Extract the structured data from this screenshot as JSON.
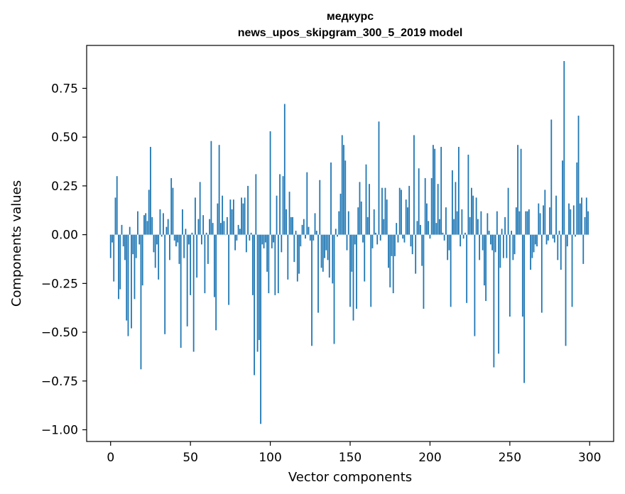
{
  "chart_data": {
    "type": "bar",
    "title": "медкурс",
    "subtitle": "news_upos_skipgram_300_5_2019 model",
    "xlabel": "Vector components",
    "ylabel": "Components values",
    "xlim": [
      -15,
      315
    ],
    "ylim": [
      -1.06,
      0.97
    ],
    "xticks": [
      0,
      50,
      100,
      150,
      200,
      250,
      300
    ],
    "xtick_labels": [
      "0",
      "50",
      "100",
      "150",
      "200",
      "250",
      "300"
    ],
    "yticks": [
      0.75,
      0.5,
      0.25,
      0.0,
      -0.25,
      -0.5,
      -0.75,
      -1.0
    ],
    "ytick_labels": [
      "0.75",
      "0.50",
      "0.25",
      "0.00",
      "−0.25",
      "−0.50",
      "−0.75",
      "−1.00"
    ],
    "bar_color": "#1f77b4",
    "grid": false,
    "x": [
      0,
      1,
      2,
      3,
      4,
      5,
      6,
      7,
      8,
      9,
      10,
      11,
      12,
      13,
      14,
      15,
      16,
      17,
      18,
      19,
      20,
      21,
      22,
      23,
      24,
      25,
      26,
      27,
      28,
      29,
      30,
      31,
      32,
      33,
      34,
      35,
      36,
      37,
      38,
      39,
      40,
      41,
      42,
      43,
      44,
      45,
      46,
      47,
      48,
      49,
      50,
      51,
      52,
      53,
      54,
      55,
      56,
      57,
      58,
      59,
      60,
      61,
      62,
      63,
      64,
      65,
      66,
      67,
      68,
      69,
      70,
      71,
      72,
      73,
      74,
      75,
      76,
      77,
      78,
      79,
      80,
      81,
      82,
      83,
      84,
      85,
      86,
      87,
      88,
      89,
      90,
      91,
      92,
      93,
      94,
      95,
      96,
      97,
      98,
      99,
      100,
      101,
      102,
      103,
      104,
      105,
      106,
      107,
      108,
      109,
      110,
      111,
      112,
      113,
      114,
      115,
      116,
      117,
      118,
      119,
      120,
      121,
      122,
      123,
      124,
      125,
      126,
      127,
      128,
      129,
      130,
      131,
      132,
      133,
      134,
      135,
      136,
      137,
      138,
      139,
      140,
      141,
      142,
      143,
      144,
      145,
      146,
      147,
      148,
      149,
      150,
      151,
      152,
      153,
      154,
      155,
      156,
      157,
      158,
      159,
      160,
      161,
      162,
      163,
      164,
      165,
      166,
      167,
      168,
      169,
      170,
      171,
      172,
      173,
      174,
      175,
      176,
      177,
      178,
      179,
      180,
      181,
      182,
      183,
      184,
      185,
      186,
      187,
      188,
      189,
      190,
      191,
      192,
      193,
      194,
      195,
      196,
      197,
      198,
      199,
      200,
      201,
      202,
      203,
      204,
      205,
      206,
      207,
      208,
      209,
      210,
      211,
      212,
      213,
      214,
      215,
      216,
      217,
      218,
      219,
      220,
      221,
      222,
      223,
      224,
      225,
      226,
      227,
      228,
      229,
      230,
      231,
      232,
      233,
      234,
      235,
      236,
      237,
      238,
      239,
      240,
      241,
      242,
      243,
      244,
      245,
      246,
      247,
      248,
      249,
      250,
      251,
      252,
      253,
      254,
      255,
      256,
      257,
      258,
      259,
      260,
      261,
      262,
      263,
      264,
      265,
      266,
      267,
      268,
      269,
      270,
      271,
      272,
      273,
      274,
      275,
      276,
      277,
      278,
      279,
      280,
      281,
      282,
      283,
      284,
      285,
      286,
      287,
      288,
      289,
      290,
      291,
      292,
      293,
      294,
      295,
      296,
      297,
      298,
      299
    ],
    "values": [
      -0.12,
      -0.04,
      -0.24,
      0.19,
      0.3,
      -0.33,
      -0.28,
      0.05,
      -0.06,
      -0.13,
      -0.44,
      -0.52,
      0.04,
      -0.48,
      -0.1,
      -0.33,
      -0.12,
      0.12,
      -0.05,
      -0.69,
      -0.26,
      0.1,
      0.11,
      0.07,
      0.23,
      0.45,
      0.09,
      -0.09,
      -0.17,
      -0.05,
      -0.23,
      0.13,
      -0.01,
      0.11,
      -0.51,
      0.04,
      0.08,
      -0.13,
      0.29,
      0.24,
      -0.03,
      -0.06,
      -0.04,
      -0.15,
      -0.58,
      0.13,
      -0.12,
      0.03,
      -0.47,
      -0.05,
      -0.31,
      0.01,
      -0.6,
      0.19,
      -0.22,
      0.08,
      0.27,
      -0.05,
      0.1,
      -0.3,
      0.01,
      -0.15,
      0.08,
      0.48,
      0.06,
      -0.32,
      -0.49,
      0.16,
      0.46,
      0.06,
      0.2,
      0.07,
      0.0,
      0.09,
      -0.36,
      0.18,
      0.13,
      0.18,
      -0.08,
      -0.03,
      0.05,
      0.03,
      0.19,
      0.16,
      0.19,
      -0.09,
      0.25,
      -0.03,
      0.01,
      -0.31,
      -0.72,
      0.31,
      -0.6,
      -0.54,
      -0.97,
      -0.05,
      -0.07,
      -0.04,
      -0.19,
      -0.3,
      0.53,
      -0.07,
      -0.04,
      -0.31,
      0.2,
      -0.3,
      0.31,
      -0.09,
      0.3,
      0.67,
      0.13,
      -0.23,
      0.22,
      0.09,
      0.09,
      -0.14,
      0.02,
      -0.24,
      -0.2,
      -0.06,
      0.05,
      0.08,
      -0.02,
      0.32,
      0.04,
      -0.03,
      -0.57,
      -0.03,
      0.11,
      0.02,
      -0.4,
      0.28,
      -0.17,
      -0.19,
      -0.12,
      -0.08,
      -0.13,
      -0.22,
      0.37,
      -0.25,
      -0.56,
      0.03,
      -0.01,
      0.12,
      0.21,
      0.51,
      0.46,
      0.38,
      -0.08,
      0.12,
      -0.37,
      -0.19,
      -0.44,
      -0.05,
      -0.38,
      0.14,
      0.27,
      0.17,
      -0.04,
      -0.24,
      0.36,
      0.09,
      0.26,
      -0.37,
      -0.07,
      0.13,
      0.01,
      -0.05,
      0.58,
      -0.03,
      0.24,
      0.08,
      0.24,
      0.18,
      -0.17,
      -0.27,
      -0.11,
      -0.3,
      -0.11,
      0.06,
      -0.04,
      0.24,
      0.23,
      -0.02,
      -0.04,
      0.18,
      0.14,
      0.25,
      -0.06,
      -0.1,
      0.51,
      -0.2,
      0.07,
      0.34,
      0.05,
      -0.16,
      -0.38,
      0.29,
      0.16,
      0.07,
      -0.02,
      0.29,
      0.46,
      0.44,
      0.06,
      0.26,
      0.08,
      0.45,
      0.01,
      -0.03,
      0.14,
      -0.13,
      -0.08,
      -0.37,
      0.33,
      0.08,
      0.27,
      0.12,
      0.45,
      -0.06,
      0.13,
      -0.02,
      0.01,
      -0.35,
      0.41,
      0.09,
      0.24,
      0.2,
      -0.52,
      0.19,
      0.08,
      -0.13,
      0.12,
      -0.08,
      -0.26,
      -0.34,
      0.11,
      0.02,
      -0.05,
      -0.08,
      -0.68,
      -0.09,
      0.12,
      -0.61,
      -0.17,
      0.03,
      -0.12,
      0.09,
      -0.12,
      0.24,
      -0.42,
      0.02,
      -0.13,
      -0.1,
      0.14,
      0.46,
      0.12,
      0.44,
      -0.42,
      -0.76,
      0.12,
      0.12,
      0.13,
      -0.18,
      -0.12,
      -0.09,
      -0.05,
      -0.06,
      0.16,
      0.11,
      -0.4,
      0.15,
      0.23,
      -0.05,
      -0.03,
      0.14,
      0.59,
      -0.02,
      -0.04,
      0.2,
      -0.13,
      0.02,
      -0.18,
      0.38,
      0.89,
      -0.57,
      -0.06,
      0.16,
      0.13,
      -0.37,
      0.15,
      -0.01,
      0.37,
      0.61,
      0.16,
      0.19,
      -0.15,
      0.09,
      0.19,
      0.12
    ]
  }
}
